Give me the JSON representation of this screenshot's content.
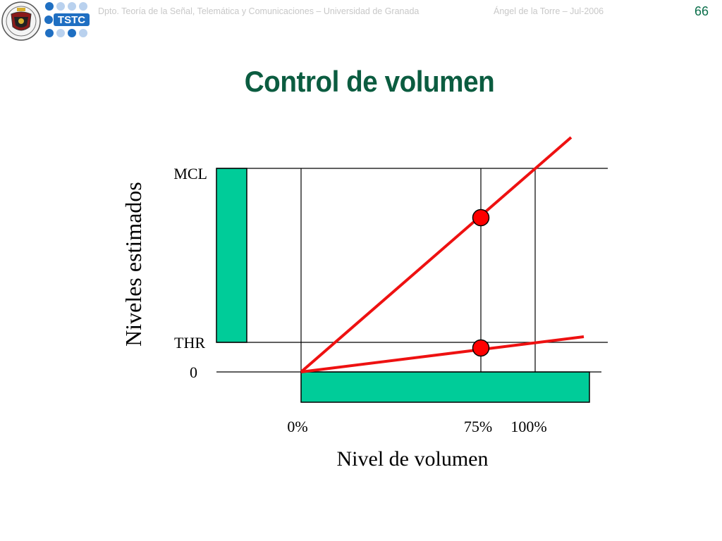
{
  "header": {
    "left_text": "Dpto. Teoría de la Señal, Telemática y Comunicaciones – Universidad de Granada",
    "right_text": "Ángel de la Torre – Jul-2006",
    "logo_text": "TSTC",
    "page_number": "66"
  },
  "title": "Control de volumen",
  "diagram": {
    "y_axis_label": "Niveles estimados",
    "x_axis_label": "Nivel de volumen",
    "y_levels": [
      "MCL",
      "THR",
      "0"
    ],
    "x_ticks": [
      "0%",
      "75%",
      "100%"
    ]
  },
  "colors": {
    "accent_green": "#00cc99",
    "line_red": "#ee1111",
    "title_green": "#0b5c40"
  }
}
